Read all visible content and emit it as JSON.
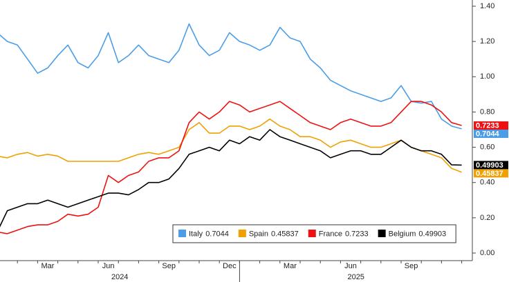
{
  "chart_data": {
    "type": "line",
    "categories": [
      null,
      null,
      null,
      null,
      null,
      "Mar",
      null,
      null,
      null,
      null,
      null,
      "Jun",
      null,
      null,
      null,
      null,
      null,
      "Sep",
      null,
      null,
      null,
      null,
      null,
      "Dec",
      null,
      null,
      null,
      null,
      null,
      "Mar",
      null,
      null,
      null,
      null,
      null,
      "Jun",
      null,
      null,
      null,
      null,
      null,
      "Sep",
      null,
      null,
      null,
      null,
      null
    ],
    "year_labels": [
      "2024",
      "2025"
    ],
    "series": [
      {
        "name": "Italy",
        "color": "#4a9de6",
        "values": [
          1.25,
          1.2,
          1.18,
          1.1,
          1.02,
          1.05,
          1.12,
          1.18,
          1.08,
          1.05,
          1.12,
          1.25,
          1.08,
          1.12,
          1.18,
          1.12,
          1.1,
          1.08,
          1.15,
          1.3,
          1.18,
          1.12,
          1.15,
          1.25,
          1.2,
          1.18,
          1.15,
          1.18,
          1.28,
          1.22,
          1.2,
          1.1,
          1.05,
          0.98,
          0.95,
          0.92,
          0.9,
          0.88,
          0.86,
          0.88,
          0.95,
          0.86,
          0.85,
          0.86,
          0.76,
          0.72,
          0.7044
        ]
      },
      {
        "name": "Spain",
        "color": "#f0a000",
        "values": [
          0.55,
          0.54,
          0.56,
          0.57,
          0.55,
          0.56,
          0.55,
          0.52,
          0.52,
          0.52,
          0.52,
          0.52,
          0.52,
          0.54,
          0.56,
          0.57,
          0.56,
          0.58,
          0.6,
          0.7,
          0.74,
          0.68,
          0.68,
          0.72,
          0.72,
          0.7,
          0.72,
          0.76,
          0.72,
          0.7,
          0.66,
          0.66,
          0.64,
          0.6,
          0.63,
          0.64,
          0.62,
          0.6,
          0.6,
          0.62,
          0.64,
          0.6,
          0.58,
          0.56,
          0.54,
          0.48,
          0.45837
        ]
      },
      {
        "name": "France",
        "color": "#ee1111",
        "values": [
          0.12,
          0.11,
          0.13,
          0.15,
          0.16,
          0.16,
          0.18,
          0.22,
          0.21,
          0.22,
          0.26,
          0.44,
          0.4,
          0.44,
          0.46,
          0.52,
          0.54,
          0.54,
          0.58,
          0.74,
          0.8,
          0.76,
          0.8,
          0.86,
          0.84,
          0.8,
          0.82,
          0.84,
          0.86,
          0.82,
          0.78,
          0.74,
          0.72,
          0.7,
          0.74,
          0.76,
          0.74,
          0.72,
          0.72,
          0.74,
          0.8,
          0.86,
          0.86,
          0.84,
          0.8,
          0.74,
          0.7233
        ]
      },
      {
        "name": "Belgium",
        "color": "#000000",
        "values": [
          0.12,
          0.24,
          0.26,
          0.28,
          0.28,
          0.3,
          0.28,
          0.26,
          0.28,
          0.3,
          0.32,
          0.34,
          0.34,
          0.33,
          0.36,
          0.4,
          0.4,
          0.42,
          0.48,
          0.56,
          0.58,
          0.6,
          0.58,
          0.64,
          0.62,
          0.66,
          0.64,
          0.7,
          0.66,
          0.64,
          0.62,
          0.6,
          0.58,
          0.54,
          0.56,
          0.58,
          0.58,
          0.56,
          0.56,
          0.6,
          0.64,
          0.6,
          0.58,
          0.58,
          0.56,
          0.5,
          0.49903
        ]
      }
    ],
    "ylim": [
      0,
      1.4
    ],
    "yticks": [
      {
        "value": 0,
        "label": "0.00"
      },
      {
        "value": 0.2,
        "label": "0.20"
      },
      {
        "value": 0.4,
        "label": "0.40"
      },
      {
        "value": 0.6,
        "label": "0.60"
      },
      {
        "value": 0.8,
        "label": "0.80"
      },
      {
        "value": 1.0,
        "label": "1.00"
      },
      {
        "value": 1.2,
        "label": "1.20"
      },
      {
        "value": 1.4,
        "label": "1.40"
      }
    ],
    "grid": false,
    "legend": "lower right"
  }
}
